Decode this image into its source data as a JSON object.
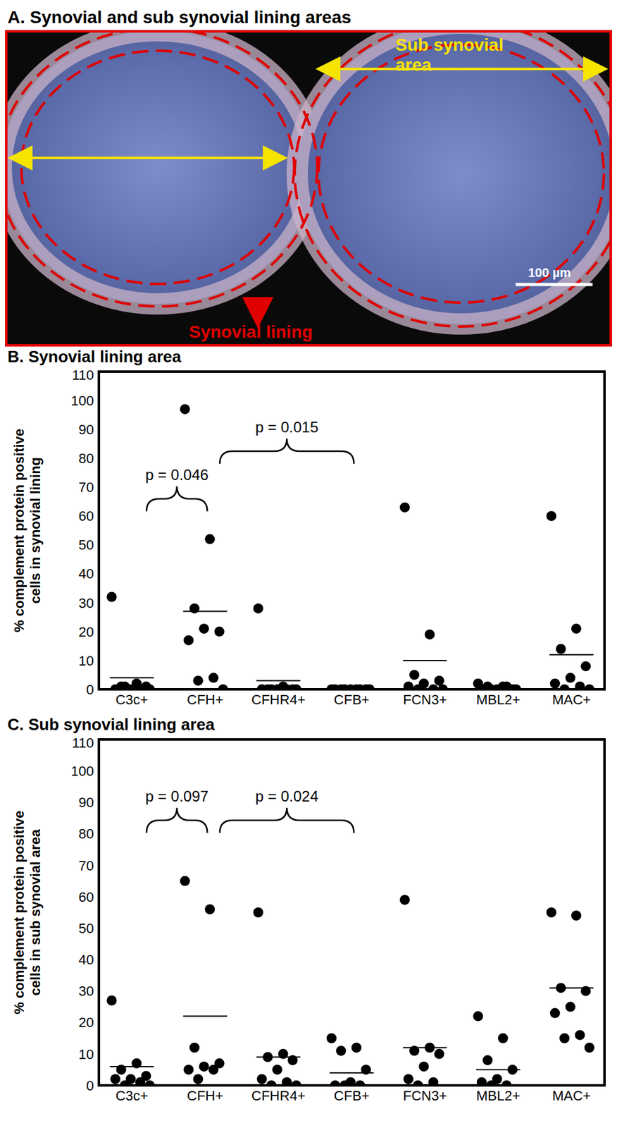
{
  "panel_a": {
    "title": "A. Synovial and sub synovial lining areas",
    "sub_synovial_label": "Sub synovial area",
    "synovial_lining_label": "Synovial lining",
    "scale_bar_label": "100 µm"
  },
  "chart_data": [
    {
      "type": "scatter",
      "title": "B. Synovial lining area",
      "y_label": "% complement protein positive cells in synovial lining",
      "categories": [
        "C3c+",
        "CFH+",
        "CFHR4+",
        "CFB+",
        "FCN3+",
        "MBL2+",
        "MAC+"
      ],
      "values": [
        [
          32,
          2,
          1,
          1,
          0,
          0,
          0,
          1,
          0
        ],
        [
          97,
          52,
          28,
          20,
          21,
          17,
          4,
          3,
          0
        ],
        [
          28,
          1,
          0,
          0,
          0,
          0,
          0,
          0,
          0
        ],
        [
          0,
          0,
          0,
          0,
          0,
          0,
          0,
          0,
          0
        ],
        [
          63,
          19,
          5,
          3,
          2,
          1,
          0,
          0,
          0
        ],
        [
          2,
          1,
          1,
          0,
          0,
          0,
          1,
          0,
          0
        ],
        [
          60,
          21,
          14,
          8,
          4,
          2,
          1,
          0,
          0
        ]
      ],
      "means": [
        4,
        27,
        3,
        0,
        10,
        0.5,
        12
      ],
      "color": "#000000",
      "ylim": [
        0,
        110
      ],
      "yticks": [
        0,
        10,
        20,
        30,
        40,
        50,
        60,
        70,
        80,
        90,
        100,
        110
      ],
      "grid": false,
      "annotations": [
        {
          "text": "p = 0.046",
          "from": "C3c+",
          "to": "CFH+"
        },
        {
          "text": "p = 0.015",
          "from": "CFH+",
          "to": "CFB+"
        }
      ]
    },
    {
      "type": "scatter",
      "title": "C. Sub synovial lining area",
      "y_label": "% complement protein positive cells in sub synovial area",
      "categories": [
        "C3c+",
        "CFH+",
        "CFHR4+",
        "CFB+",
        "FCN3+",
        "MBL2+",
        "MAC+"
      ],
      "values": [
        [
          27,
          7,
          5,
          3,
          2,
          2,
          1,
          0,
          0
        ],
        [
          65,
          56,
          12,
          7,
          6,
          5,
          5,
          2
        ],
        [
          55,
          10,
          9,
          8,
          5,
          2,
          1,
          0,
          0
        ],
        [
          15,
          12,
          11,
          5,
          1,
          0,
          0,
          0
        ],
        [
          59,
          12,
          11,
          10,
          6,
          2,
          1,
          0
        ],
        [
          22,
          15,
          8,
          5,
          2,
          1,
          0,
          0
        ],
        [
          55,
          54,
          31,
          30,
          25,
          23,
          16,
          15,
          12
        ]
      ],
      "means": [
        6,
        22,
        9,
        4,
        12,
        5,
        31
      ],
      "color": "#000000",
      "ylim": [
        0,
        110
      ],
      "yticks": [
        0,
        10,
        20,
        30,
        40,
        50,
        60,
        70,
        80,
        90,
        100,
        110
      ],
      "grid": false,
      "annotations": [
        {
          "text": "p = 0.097",
          "from": "C3c+",
          "to": "CFH+"
        },
        {
          "text": "p = 0.024",
          "from": "CFH+",
          "to": "CFB+"
        }
      ]
    }
  ]
}
